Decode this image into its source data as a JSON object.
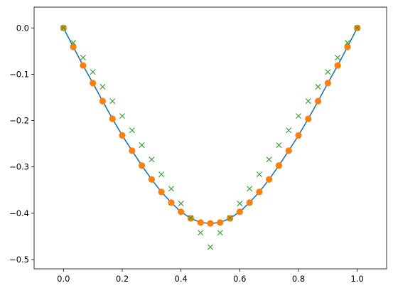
{
  "chart_data": {
    "type": "line",
    "title": "",
    "xlabel": "",
    "ylabel": "",
    "xlim": [
      -0.1,
      1.1
    ],
    "ylim": [
      -0.52,
      0.045
    ],
    "grid": false,
    "xticks": [
      0.0,
      0.2,
      0.4,
      0.6,
      0.8,
      1.0
    ],
    "xtick_labels": [
      "0.0",
      "0.2",
      "0.4",
      "0.6",
      "0.8",
      "1.0"
    ],
    "yticks": [
      0.0,
      -0.1,
      -0.2,
      -0.3,
      -0.4,
      -0.5
    ],
    "ytick_labels": [
      "0.0",
      "−0.1",
      "−0.2",
      "−0.3",
      "−0.4",
      "−0.5"
    ],
    "series": [
      {
        "style": "line",
        "color": "#1f77b4",
        "x": [
          0.0,
          0.0333,
          0.0667,
          0.1,
          0.1333,
          0.1667,
          0.2,
          0.2333,
          0.2667,
          0.3,
          0.3333,
          0.3667,
          0.4,
          0.4333,
          0.4667,
          0.5,
          0.5333,
          0.5667,
          0.6,
          0.6333,
          0.6667,
          0.7,
          0.7333,
          0.7667,
          0.8,
          0.8333,
          0.8667,
          0.9,
          0.9333,
          0.9667,
          1.0
        ],
        "y": [
          0.0,
          -0.041,
          -0.081,
          -0.119,
          -0.158,
          -0.196,
          -0.232,
          -0.265,
          -0.297,
          -0.327,
          -0.354,
          -0.377,
          -0.397,
          -0.411,
          -0.42,
          -0.422,
          -0.42,
          -0.411,
          -0.397,
          -0.377,
          -0.354,
          -0.327,
          -0.297,
          -0.265,
          -0.232,
          -0.196,
          -0.158,
          -0.119,
          -0.081,
          -0.041,
          0.0
        ]
      },
      {
        "style": "markers",
        "marker": "circle",
        "color": "#ff7f0e",
        "x": [
          0.0,
          0.0333,
          0.0667,
          0.1,
          0.1333,
          0.1667,
          0.2,
          0.2333,
          0.2667,
          0.3,
          0.3333,
          0.3667,
          0.4,
          0.4333,
          0.4667,
          0.5,
          0.5333,
          0.5667,
          0.6,
          0.6333,
          0.6667,
          0.7,
          0.7333,
          0.7667,
          0.8,
          0.8333,
          0.8667,
          0.9,
          0.9333,
          0.9667,
          1.0
        ],
        "y": [
          0.0,
          -0.041,
          -0.081,
          -0.119,
          -0.158,
          -0.196,
          -0.232,
          -0.265,
          -0.297,
          -0.327,
          -0.354,
          -0.377,
          -0.397,
          -0.411,
          -0.42,
          -0.422,
          -0.42,
          -0.411,
          -0.397,
          -0.377,
          -0.354,
          -0.327,
          -0.297,
          -0.265,
          -0.232,
          -0.196,
          -0.158,
          -0.119,
          -0.081,
          -0.041,
          0.0
        ]
      },
      {
        "style": "markers",
        "marker": "x",
        "color": "#2ca02c",
        "x": [
          0.0,
          0.0333,
          0.0667,
          0.1,
          0.1333,
          0.1667,
          0.2,
          0.2333,
          0.2667,
          0.3,
          0.3333,
          0.3667,
          0.4,
          0.4333,
          0.4667,
          0.5,
          0.5333,
          0.5667,
          0.6,
          0.6333,
          0.6667,
          0.7,
          0.7333,
          0.7667,
          0.8,
          0.8333,
          0.8667,
          0.9,
          0.9333,
          0.9667,
          1.0
        ],
        "y": [
          0.0,
          -0.032,
          -0.064,
          -0.095,
          -0.127,
          -0.158,
          -0.19,
          -0.221,
          -0.253,
          -0.284,
          -0.316,
          -0.347,
          -0.379,
          -0.41,
          -0.442,
          -0.473,
          -0.442,
          -0.41,
          -0.379,
          -0.347,
          -0.316,
          -0.284,
          -0.253,
          -0.221,
          -0.19,
          -0.158,
          -0.127,
          -0.095,
          -0.064,
          -0.032,
          0.0
        ]
      }
    ]
  }
}
